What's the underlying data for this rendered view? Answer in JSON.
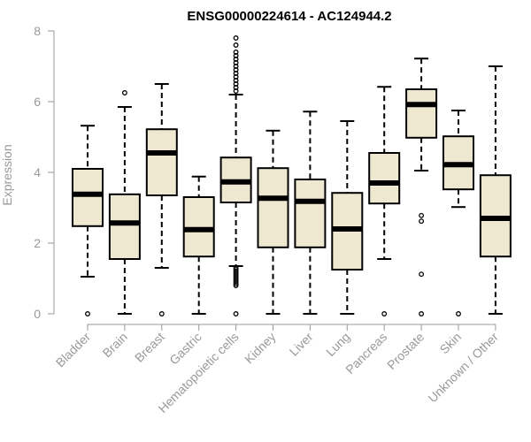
{
  "chart_data": {
    "type": "boxplot",
    "title": "ENSG00000224614 - AC124944.2",
    "xlabel": "",
    "ylabel": "Expression",
    "ylim": [
      0,
      8
    ],
    "yticks": [
      0,
      2,
      4,
      6,
      8
    ],
    "colors": {
      "box_fill": "#efe8d0",
      "stroke": "#000000",
      "axis": "#999999"
    },
    "categories": [
      "Bladder",
      "Brain",
      "Breast",
      "Gastric",
      "Hematopoietic cells",
      "Kidney",
      "Liver",
      "Lung",
      "Pancreas",
      "Prostate",
      "Skin",
      "Unknown / Other"
    ],
    "boxes": [
      {
        "label": "Bladder",
        "whisker_low": 1.05,
        "q1": 2.48,
        "median": 3.38,
        "q3": 4.1,
        "whisker_high": 5.32,
        "outliers": [
          0
        ]
      },
      {
        "label": "Brain",
        "whisker_low": 0,
        "q1": 1.55,
        "median": 2.57,
        "q3": 3.38,
        "whisker_high": 5.85,
        "outliers": [
          6.25
        ]
      },
      {
        "label": "Breast",
        "whisker_low": 1.3,
        "q1": 3.35,
        "median": 4.55,
        "q3": 5.22,
        "whisker_high": 6.5,
        "outliers": [
          0
        ]
      },
      {
        "label": "Gastric",
        "whisker_low": 0,
        "q1": 1.62,
        "median": 2.38,
        "q3": 3.3,
        "whisker_high": 3.88,
        "outliers": []
      },
      {
        "label": "Hematopoietic cells",
        "whisker_low": 1.35,
        "q1": 3.15,
        "median": 3.73,
        "q3": 4.42,
        "whisker_high": 6.2,
        "outliers": [
          0,
          0.8,
          0.85,
          0.9,
          0.95,
          1.0,
          1.05,
          1.1,
          1.15,
          1.2,
          1.25,
          1.3,
          6.3,
          6.4,
          6.5,
          6.6,
          6.7,
          6.8,
          6.9,
          7.0,
          7.1,
          7.2,
          7.3,
          7.4,
          7.6,
          7.8
        ]
      },
      {
        "label": "Kidney",
        "whisker_low": 0,
        "q1": 1.88,
        "median": 3.27,
        "q3": 4.12,
        "whisker_high": 5.18,
        "outliers": []
      },
      {
        "label": "Liver",
        "whisker_low": 0,
        "q1": 1.88,
        "median": 3.18,
        "q3": 3.8,
        "whisker_high": 5.72,
        "outliers": []
      },
      {
        "label": "Lung",
        "whisker_low": 0,
        "q1": 1.25,
        "median": 2.4,
        "q3": 3.42,
        "whisker_high": 5.45,
        "outliers": []
      },
      {
        "label": "Pancreas",
        "whisker_low": 1.55,
        "q1": 3.12,
        "median": 3.7,
        "q3": 4.55,
        "whisker_high": 6.42,
        "outliers": [
          0
        ]
      },
      {
        "label": "Prostate",
        "whisker_low": 4.05,
        "q1": 4.98,
        "median": 5.92,
        "q3": 6.35,
        "whisker_high": 7.22,
        "outliers": [
          0,
          1.12,
          2.62,
          2.78
        ]
      },
      {
        "label": "Skin",
        "whisker_low": 3.02,
        "q1": 3.52,
        "median": 4.22,
        "q3": 5.02,
        "whisker_high": 5.75,
        "outliers": [
          0
        ]
      },
      {
        "label": "Unknown / Other",
        "whisker_low": 0,
        "q1": 1.62,
        "median": 2.7,
        "q3": 3.92,
        "whisker_high": 7.0,
        "outliers": []
      }
    ]
  }
}
